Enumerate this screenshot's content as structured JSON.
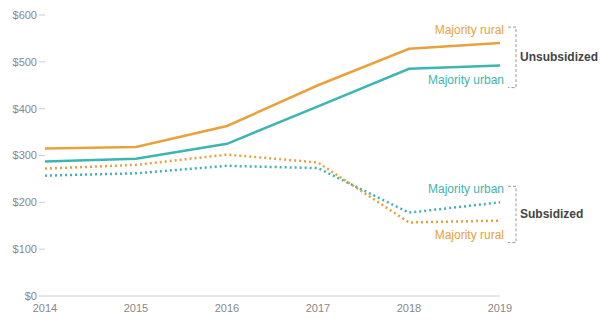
{
  "chart_data": {
    "type": "line",
    "categories": [
      "2014",
      "2015",
      "2016",
      "2017",
      "2018",
      "2019"
    ],
    "ylim": [
      0,
      600
    ],
    "yticks": [
      {
        "value": 0,
        "label": "$0"
      },
      {
        "value": 100,
        "label": "$100"
      },
      {
        "value": 200,
        "label": "$200"
      },
      {
        "value": 300,
        "label": "$300"
      },
      {
        "value": 400,
        "label": "$400"
      },
      {
        "value": 500,
        "label": "$500"
      },
      {
        "value": 600,
        "label": "$600"
      }
    ],
    "grid": false,
    "series": [
      {
        "name": "Majority rural",
        "group": "Unsubsidized",
        "color": "#E9A23B",
        "line_style": "solid",
        "values": [
          315,
          318,
          363,
          450,
          528,
          540
        ]
      },
      {
        "name": "Majority urban",
        "group": "Unsubsidized",
        "color": "#3DB5B0",
        "line_style": "solid",
        "values": [
          287,
          293,
          325,
          405,
          485,
          492
        ]
      },
      {
        "name": "Majority urban",
        "group": "Subsidized",
        "color": "#3DB5B0",
        "line_style": "dotted",
        "values": [
          257,
          262,
          278,
          273,
          178,
          200
        ]
      },
      {
        "name": "Majority rural",
        "group": "Subsidized",
        "color": "#E9A23B",
        "line_style": "dotted",
        "values": [
          272,
          280,
          302,
          285,
          157,
          161
        ]
      }
    ]
  }
}
